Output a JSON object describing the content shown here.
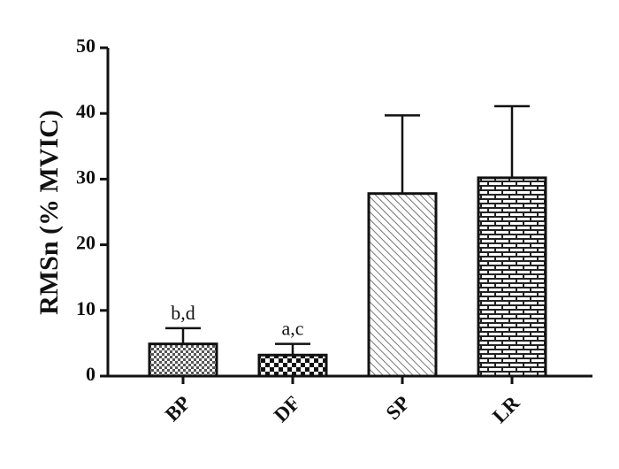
{
  "chart_data": {
    "type": "bar",
    "title": "",
    "xlabel": "",
    "ylabel": "RMSn (% MVIC)",
    "ylim": [
      0,
      50
    ],
    "yticks": [
      0,
      10,
      20,
      30,
      40,
      50
    ],
    "ytick_labels": [
      "0",
      "10",
      "20",
      "30",
      "40",
      "50"
    ],
    "categories": [
      "BP",
      "DF",
      "SP",
      "LR"
    ],
    "values": [
      4.9,
      3.2,
      27.8,
      30.2
    ],
    "error_upper": [
      7.3,
      4.9,
      39.7,
      41.1
    ],
    "annotations": [
      "b,d",
      "a,c",
      "",
      ""
    ],
    "patterns": [
      "fine-checker",
      "checkerboard",
      "diagonal-hatch",
      "brick"
    ],
    "grid": false,
    "colors": {
      "ink": "#111111",
      "fill": "#ffffff"
    }
  }
}
